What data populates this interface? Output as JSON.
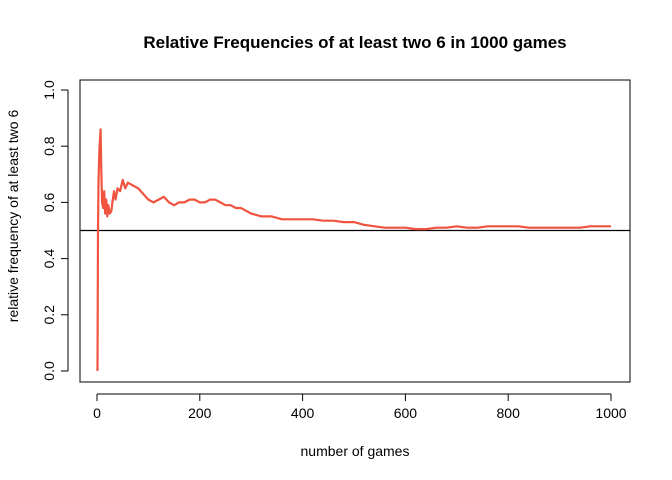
{
  "chart_data": {
    "type": "line",
    "title": "Relative Frequencies  of at least two 6 in 1000 games",
    "xlabel": "number of games",
    "ylabel": "relative frequency of at least two 6",
    "xlim": [
      0,
      1000
    ],
    "ylim": [
      0,
      1.0
    ],
    "xticks": [
      0,
      200,
      400,
      600,
      800,
      1000
    ],
    "yticks": [
      0.0,
      0.2,
      0.4,
      0.6,
      0.8,
      1.0
    ],
    "xtick_labels": [
      "0",
      "200",
      "400",
      "600",
      "800",
      "1000"
    ],
    "ytick_labels": [
      "0.0",
      "0.2",
      "0.4",
      "0.6",
      "0.8",
      "1.0"
    ],
    "grid": false,
    "series": [
      {
        "color": "#f0533f",
        "x": [
          1,
          2,
          3,
          4,
          5,
          6,
          7,
          8,
          9,
          10,
          12,
          14,
          16,
          18,
          20,
          22,
          25,
          28,
          30,
          33,
          36,
          40,
          45,
          50,
          55,
          60,
          70,
          80,
          90,
          100,
          110,
          120,
          130,
          140,
          150,
          160,
          170,
          180,
          190,
          200,
          210,
          220,
          230,
          240,
          250,
          260,
          270,
          280,
          290,
          300,
          320,
          340,
          360,
          380,
          400,
          420,
          440,
          460,
          480,
          500,
          520,
          540,
          560,
          580,
          600,
          620,
          640,
          660,
          680,
          700,
          720,
          740,
          760,
          780,
          800,
          820,
          840,
          860,
          880,
          900,
          920,
          940,
          960,
          980,
          1000
        ],
        "y": [
          0.0,
          0.5,
          0.67,
          0.75,
          0.8,
          0.83,
          0.86,
          0.75,
          0.67,
          0.6,
          0.58,
          0.64,
          0.56,
          0.61,
          0.55,
          0.59,
          0.56,
          0.57,
          0.6,
          0.64,
          0.61,
          0.65,
          0.64,
          0.68,
          0.65,
          0.67,
          0.66,
          0.65,
          0.63,
          0.61,
          0.6,
          0.61,
          0.62,
          0.6,
          0.59,
          0.6,
          0.6,
          0.61,
          0.61,
          0.6,
          0.6,
          0.61,
          0.61,
          0.6,
          0.59,
          0.59,
          0.58,
          0.58,
          0.57,
          0.56,
          0.55,
          0.55,
          0.54,
          0.54,
          0.54,
          0.54,
          0.535,
          0.535,
          0.53,
          0.53,
          0.52,
          0.515,
          0.51,
          0.51,
          0.51,
          0.505,
          0.505,
          0.51,
          0.51,
          0.515,
          0.51,
          0.51,
          0.515,
          0.515,
          0.515,
          0.515,
          0.51,
          0.51,
          0.51,
          0.51,
          0.51,
          0.51,
          0.515,
          0.515,
          0.515
        ]
      }
    ],
    "reference_line": {
      "y": 0.5,
      "color": "#000000"
    }
  }
}
